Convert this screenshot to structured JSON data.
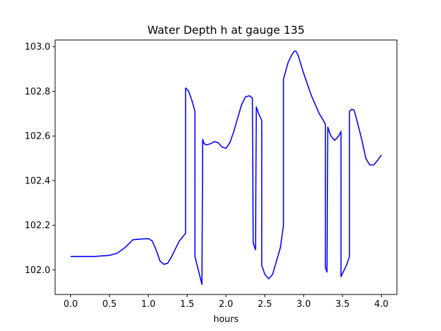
{
  "chart_data": {
    "type": "line",
    "title": "Water Depth h at gauge 135",
    "xlabel": "hours",
    "ylabel": "",
    "xlim": [
      -0.2,
      4.2
    ],
    "ylim": [
      101.89,
      103.03
    ],
    "x_ticks": [
      0.0,
      0.5,
      1.0,
      1.5,
      2.0,
      2.5,
      3.0,
      3.5,
      4.0
    ],
    "x_tick_labels": [
      "0.0",
      "0.5",
      "1.0",
      "1.5",
      "2.0",
      "2.5",
      "3.0",
      "3.5",
      "4.0"
    ],
    "y_ticks": [
      102.0,
      102.2,
      102.4,
      102.6,
      102.8,
      103.0
    ],
    "y_tick_labels": [
      "102.0",
      "102.2",
      "102.4",
      "102.6",
      "102.8",
      "103.0"
    ],
    "grid": false,
    "series": [
      {
        "color": "#0000ff",
        "x": [
          0.0,
          0.3,
          0.5,
          0.6,
          0.7,
          0.8,
          0.9,
          1.0,
          1.05,
          1.1,
          1.15,
          1.2,
          1.25,
          1.3,
          1.4,
          1.47,
          1.48,
          1.48,
          1.52,
          1.56,
          1.6,
          1.6,
          1.69,
          1.7,
          1.72,
          1.75,
          1.8,
          1.85,
          1.9,
          1.95,
          2.0,
          2.05,
          2.1,
          2.15,
          2.2,
          2.25,
          2.3,
          2.34,
          2.35,
          2.38,
          2.39,
          2.42,
          2.46,
          2.46,
          2.5,
          2.55,
          2.6,
          2.7,
          2.74,
          2.74,
          2.8,
          2.85,
          2.88,
          2.9,
          2.93,
          3.0,
          3.05,
          3.1,
          3.2,
          3.27,
          3.28,
          3.28,
          3.3,
          3.31,
          3.35,
          3.4,
          3.45,
          3.48,
          3.48,
          3.55,
          3.59,
          3.59,
          3.62,
          3.65,
          3.7,
          3.75,
          3.8,
          3.85,
          3.9,
          3.95,
          4.0
        ],
        "y": [
          102.06,
          102.06,
          102.065,
          102.075,
          102.1,
          102.135,
          102.138,
          102.14,
          102.13,
          102.09,
          102.04,
          102.025,
          102.03,
          102.06,
          102.13,
          102.16,
          102.165,
          102.815,
          102.8,
          102.76,
          102.71,
          102.06,
          101.935,
          102.585,
          102.565,
          102.56,
          102.565,
          102.575,
          102.57,
          102.55,
          102.545,
          102.57,
          102.62,
          102.68,
          102.74,
          102.775,
          102.78,
          102.77,
          102.12,
          102.09,
          102.73,
          102.7,
          102.67,
          102.02,
          101.98,
          101.96,
          101.98,
          102.1,
          102.2,
          102.855,
          102.93,
          102.965,
          102.98,
          102.98,
          102.96,
          102.88,
          102.83,
          102.78,
          102.7,
          102.66,
          102.65,
          102.01,
          101.99,
          102.64,
          102.6,
          102.58,
          102.6,
          102.62,
          101.97,
          102.02,
          102.06,
          102.71,
          102.72,
          102.715,
          102.65,
          102.58,
          102.5,
          102.47,
          102.47,
          102.49,
          102.515
        ]
      }
    ]
  }
}
